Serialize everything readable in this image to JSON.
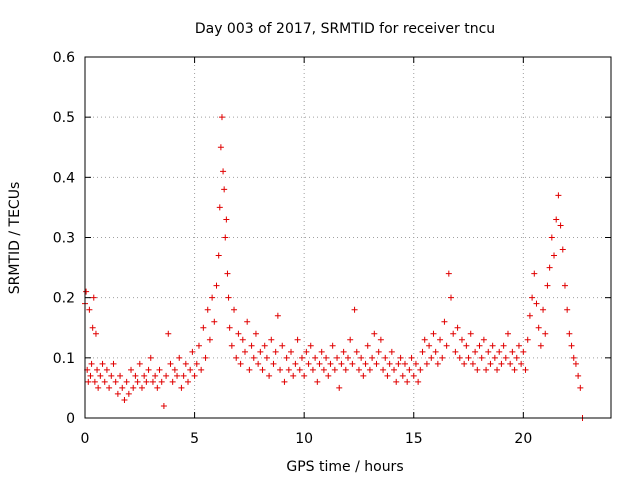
{
  "chart_data": {
    "type": "scatter",
    "title": "Day 003 of 2017, SRMTID for receiver tncu",
    "xlabel": "GPS time / hours",
    "ylabel": "SRMTID / TECUs",
    "xlim": [
      0,
      24
    ],
    "ylim": [
      0,
      0.6
    ],
    "xticks": [
      0,
      5,
      10,
      15,
      20
    ],
    "xtick_labels": [
      "0",
      "5",
      "10",
      "15",
      "20"
    ],
    "yticks": [
      0,
      0.1,
      0.2,
      0.3,
      0.4,
      0.5,
      0.6
    ],
    "ytick_labels": [
      "0",
      "0.1",
      "0.2",
      "0.3",
      "0.4",
      "0.5",
      "0.6"
    ],
    "grid": true,
    "marker": "+",
    "color": "#e00000",
    "series": [
      {
        "name": "SRMTID",
        "points": [
          [
            0.0,
            0.19
          ],
          [
            0.05,
            0.21
          ],
          [
            0.1,
            0.08
          ],
          [
            0.15,
            0.06
          ],
          [
            0.2,
            0.18
          ],
          [
            0.25,
            0.07
          ],
          [
            0.3,
            0.09
          ],
          [
            0.35,
            0.15
          ],
          [
            0.4,
            0.2
          ],
          [
            0.45,
            0.06
          ],
          [
            0.5,
            0.14
          ],
          [
            0.55,
            0.08
          ],
          [
            0.6,
            0.05
          ],
          [
            0.7,
            0.07
          ],
          [
            0.8,
            0.09
          ],
          [
            0.9,
            0.06
          ],
          [
            1.0,
            0.08
          ],
          [
            1.1,
            0.05
          ],
          [
            1.2,
            0.07
          ],
          [
            1.3,
            0.09
          ],
          [
            1.4,
            0.06
          ],
          [
            1.5,
            0.04
          ],
          [
            1.6,
            0.07
          ],
          [
            1.7,
            0.05
          ],
          [
            1.8,
            0.03
          ],
          [
            1.9,
            0.06
          ],
          [
            2.0,
            0.04
          ],
          [
            2.1,
            0.08
          ],
          [
            2.2,
            0.05
          ],
          [
            2.3,
            0.07
          ],
          [
            2.4,
            0.06
          ],
          [
            2.5,
            0.09
          ],
          [
            2.6,
            0.05
          ],
          [
            2.7,
            0.07
          ],
          [
            2.8,
            0.06
          ],
          [
            2.9,
            0.08
          ],
          [
            3.0,
            0.1
          ],
          [
            3.1,
            0.06
          ],
          [
            3.2,
            0.07
          ],
          [
            3.3,
            0.05
          ],
          [
            3.4,
            0.08
          ],
          [
            3.5,
            0.06
          ],
          [
            3.6,
            0.02
          ],
          [
            3.7,
            0.07
          ],
          [
            3.8,
            0.14
          ],
          [
            3.9,
            0.09
          ],
          [
            4.0,
            0.06
          ],
          [
            4.1,
            0.08
          ],
          [
            4.2,
            0.07
          ],
          [
            4.3,
            0.1
          ],
          [
            4.4,
            0.05
          ],
          [
            4.5,
            0.07
          ],
          [
            4.6,
            0.09
          ],
          [
            4.7,
            0.06
          ],
          [
            4.8,
            0.08
          ],
          [
            4.9,
            0.11
          ],
          [
            5.0,
            0.07
          ],
          [
            5.1,
            0.09
          ],
          [
            5.2,
            0.12
          ],
          [
            5.3,
            0.08
          ],
          [
            5.4,
            0.15
          ],
          [
            5.5,
            0.1
          ],
          [
            5.6,
            0.18
          ],
          [
            5.7,
            0.13
          ],
          [
            5.8,
            0.2
          ],
          [
            5.9,
            0.16
          ],
          [
            6.0,
            0.22
          ],
          [
            6.1,
            0.27
          ],
          [
            6.15,
            0.35
          ],
          [
            6.2,
            0.45
          ],
          [
            6.25,
            0.5
          ],
          [
            6.3,
            0.41
          ],
          [
            6.35,
            0.38
          ],
          [
            6.4,
            0.3
          ],
          [
            6.45,
            0.33
          ],
          [
            6.5,
            0.24
          ],
          [
            6.55,
            0.2
          ],
          [
            6.6,
            0.15
          ],
          [
            6.7,
            0.12
          ],
          [
            6.8,
            0.18
          ],
          [
            6.9,
            0.1
          ],
          [
            7.0,
            0.14
          ],
          [
            7.1,
            0.09
          ],
          [
            7.2,
            0.13
          ],
          [
            7.3,
            0.11
          ],
          [
            7.4,
            0.16
          ],
          [
            7.5,
            0.08
          ],
          [
            7.6,
            0.12
          ],
          [
            7.7,
            0.1
          ],
          [
            7.8,
            0.14
          ],
          [
            7.9,
            0.09
          ],
          [
            8.0,
            0.11
          ],
          [
            8.1,
            0.08
          ],
          [
            8.2,
            0.12
          ],
          [
            8.3,
            0.1
          ],
          [
            8.4,
            0.07
          ],
          [
            8.5,
            0.13
          ],
          [
            8.6,
            0.09
          ],
          [
            8.7,
            0.11
          ],
          [
            8.8,
            0.17
          ],
          [
            8.9,
            0.08
          ],
          [
            9.0,
            0.12
          ],
          [
            9.1,
            0.06
          ],
          [
            9.2,
            0.1
          ],
          [
            9.3,
            0.08
          ],
          [
            9.4,
            0.11
          ],
          [
            9.5,
            0.07
          ],
          [
            9.6,
            0.09
          ],
          [
            9.7,
            0.13
          ],
          [
            9.8,
            0.08
          ],
          [
            9.9,
            0.1
          ],
          [
            10.0,
            0.07
          ],
          [
            10.1,
            0.11
          ],
          [
            10.2,
            0.09
          ],
          [
            10.3,
            0.12
          ],
          [
            10.4,
            0.08
          ],
          [
            10.5,
            0.1
          ],
          [
            10.6,
            0.06
          ],
          [
            10.7,
            0.09
          ],
          [
            10.8,
            0.11
          ],
          [
            10.9,
            0.08
          ],
          [
            11.0,
            0.1
          ],
          [
            11.1,
            0.07
          ],
          [
            11.2,
            0.09
          ],
          [
            11.3,
            0.12
          ],
          [
            11.4,
            0.08
          ],
          [
            11.5,
            0.1
          ],
          [
            11.6,
            0.05
          ],
          [
            11.7,
            0.09
          ],
          [
            11.8,
            0.11
          ],
          [
            11.9,
            0.08
          ],
          [
            12.0,
            0.1
          ],
          [
            12.1,
            0.13
          ],
          [
            12.2,
            0.09
          ],
          [
            12.3,
            0.18
          ],
          [
            12.4,
            0.11
          ],
          [
            12.5,
            0.08
          ],
          [
            12.6,
            0.1
          ],
          [
            12.7,
            0.07
          ],
          [
            12.8,
            0.09
          ],
          [
            12.9,
            0.12
          ],
          [
            13.0,
            0.08
          ],
          [
            13.1,
            0.1
          ],
          [
            13.2,
            0.14
          ],
          [
            13.3,
            0.09
          ],
          [
            13.4,
            0.11
          ],
          [
            13.5,
            0.13
          ],
          [
            13.6,
            0.08
          ],
          [
            13.7,
            0.1
          ],
          [
            13.8,
            0.07
          ],
          [
            13.9,
            0.09
          ],
          [
            14.0,
            0.11
          ],
          [
            14.1,
            0.08
          ],
          [
            14.2,
            0.06
          ],
          [
            14.3,
            0.09
          ],
          [
            14.4,
            0.1
          ],
          [
            14.5,
            0.07
          ],
          [
            14.6,
            0.09
          ],
          [
            14.7,
            0.06
          ],
          [
            14.8,
            0.08
          ],
          [
            14.9,
            0.1
          ],
          [
            15.0,
            0.07
          ],
          [
            15.1,
            0.09
          ],
          [
            15.2,
            0.06
          ],
          [
            15.3,
            0.08
          ],
          [
            15.4,
            0.11
          ],
          [
            15.5,
            0.13
          ],
          [
            15.6,
            0.09
          ],
          [
            15.7,
            0.12
          ],
          [
            15.8,
            0.1
          ],
          [
            15.9,
            0.14
          ],
          [
            16.0,
            0.11
          ],
          [
            16.1,
            0.09
          ],
          [
            16.2,
            0.13
          ],
          [
            16.3,
            0.1
          ],
          [
            16.4,
            0.16
          ],
          [
            16.5,
            0.12
          ],
          [
            16.6,
            0.24
          ],
          [
            16.7,
            0.2
          ],
          [
            16.8,
            0.14
          ],
          [
            16.9,
            0.11
          ],
          [
            17.0,
            0.15
          ],
          [
            17.1,
            0.1
          ],
          [
            17.2,
            0.13
          ],
          [
            17.3,
            0.09
          ],
          [
            17.4,
            0.12
          ],
          [
            17.5,
            0.1
          ],
          [
            17.6,
            0.14
          ],
          [
            17.7,
            0.09
          ],
          [
            17.8,
            0.11
          ],
          [
            17.9,
            0.08
          ],
          [
            18.0,
            0.12
          ],
          [
            18.1,
            0.1
          ],
          [
            18.2,
            0.13
          ],
          [
            18.3,
            0.08
          ],
          [
            18.4,
            0.11
          ],
          [
            18.5,
            0.09
          ],
          [
            18.6,
            0.12
          ],
          [
            18.7,
            0.1
          ],
          [
            18.8,
            0.08
          ],
          [
            18.9,
            0.11
          ],
          [
            19.0,
            0.09
          ],
          [
            19.1,
            0.12
          ],
          [
            19.2,
            0.1
          ],
          [
            19.3,
            0.14
          ],
          [
            19.4,
            0.09
          ],
          [
            19.5,
            0.11
          ],
          [
            19.6,
            0.08
          ],
          [
            19.7,
            0.1
          ],
          [
            19.8,
            0.12
          ],
          [
            19.9,
            0.09
          ],
          [
            20.0,
            0.11
          ],
          [
            20.1,
            0.08
          ],
          [
            20.2,
            0.13
          ],
          [
            20.3,
            0.17
          ],
          [
            20.4,
            0.2
          ],
          [
            20.5,
            0.24
          ],
          [
            20.6,
            0.19
          ],
          [
            20.7,
            0.15
          ],
          [
            20.8,
            0.12
          ],
          [
            20.9,
            0.18
          ],
          [
            21.0,
            0.14
          ],
          [
            21.1,
            0.22
          ],
          [
            21.2,
            0.25
          ],
          [
            21.3,
            0.3
          ],
          [
            21.4,
            0.27
          ],
          [
            21.5,
            0.33
          ],
          [
            21.6,
            0.37
          ],
          [
            21.7,
            0.32
          ],
          [
            21.8,
            0.28
          ],
          [
            21.9,
            0.22
          ],
          [
            22.0,
            0.18
          ],
          [
            22.1,
            0.14
          ],
          [
            22.2,
            0.12
          ],
          [
            22.3,
            0.1
          ],
          [
            22.4,
            0.09
          ],
          [
            22.5,
            0.07
          ],
          [
            22.6,
            0.05
          ],
          [
            22.7,
            0.0
          ]
        ]
      }
    ]
  }
}
